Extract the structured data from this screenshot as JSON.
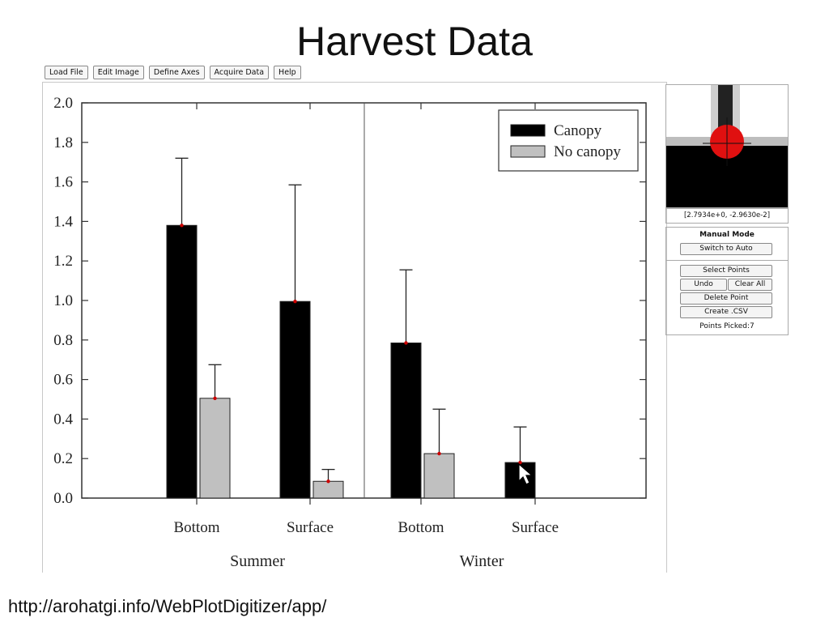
{
  "slide": {
    "title": "Harvest Data",
    "url": "http://arohatgi.info/WebPlotDigitizer/app/"
  },
  "toolbar": {
    "buttons": [
      "Load File",
      "Edit Image",
      "Define Axes",
      "Acquire Data",
      "Help"
    ]
  },
  "side_panel": {
    "coordinates": "[2.7934e+0, -2.9630e-2]",
    "mode_label": "Manual Mode",
    "switch_button": "Switch to Auto",
    "select_points": "Select Points",
    "undo": "Undo",
    "clear_all": "Clear All",
    "delete_point": "Delete Point",
    "create_csv": "Create .CSV",
    "points_picked": "Points Picked:7"
  },
  "colors": {
    "canopy": "#000000",
    "no_canopy": "#c0c0c0",
    "marker": "#cc0000"
  },
  "chart_data": {
    "type": "bar",
    "title": "",
    "xlabel": "",
    "ylabel": "",
    "ylim": [
      0,
      2.0
    ],
    "yticks": [
      "0.0",
      "0.2",
      "0.4",
      "0.6",
      "0.8",
      "1.0",
      "1.2",
      "1.4",
      "1.6",
      "1.8",
      "2.0"
    ],
    "groups": [
      "Summer",
      "Winter"
    ],
    "categories": [
      "Bottom",
      "Surface",
      "Bottom",
      "Surface"
    ],
    "series": [
      {
        "name": "Canopy",
        "values": [
          1.38,
          0.995,
          0.785,
          0.18
        ],
        "errors": [
          0.34,
          0.59,
          0.37,
          0.18
        ]
      },
      {
        "name": "No canopy",
        "values": [
          0.505,
          0.085,
          0.225,
          null
        ],
        "errors": [
          0.17,
          0.06,
          0.225,
          null
        ]
      }
    ],
    "legend": "top-right"
  }
}
